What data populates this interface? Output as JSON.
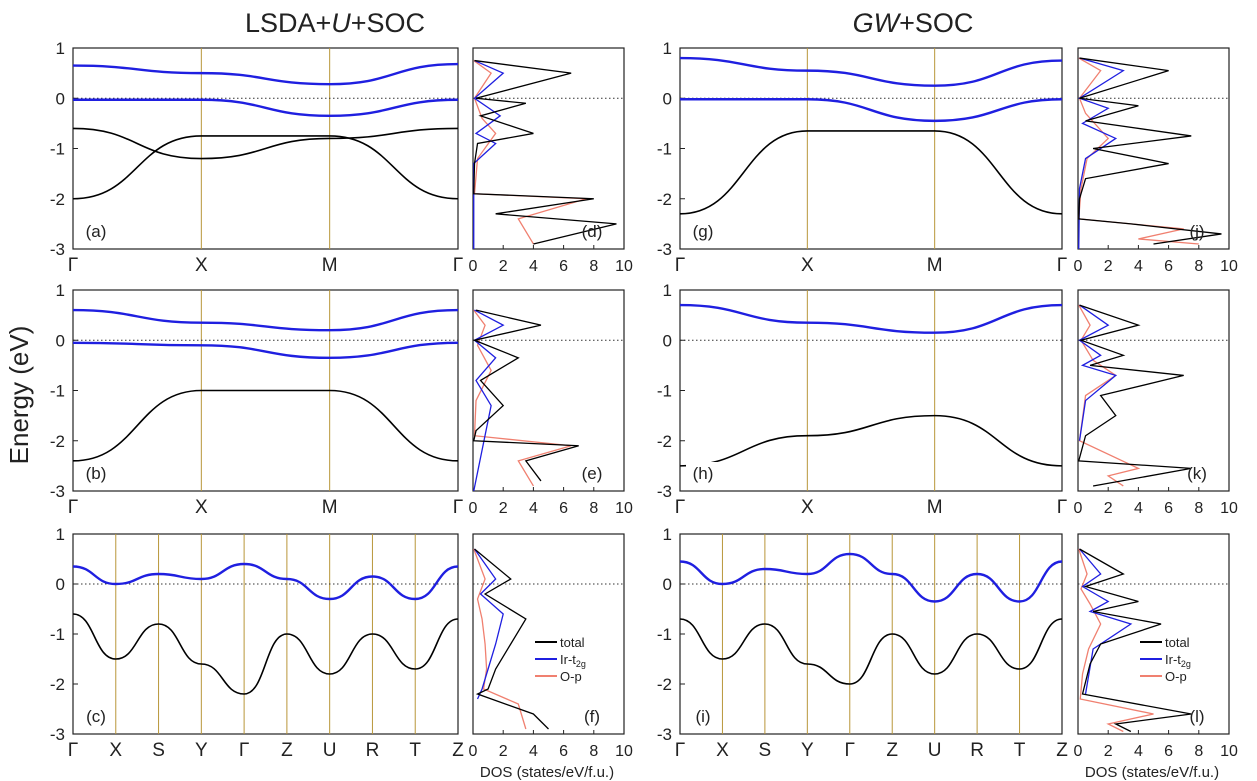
{
  "figure": {
    "col_titles": [
      "LSDA+U+SOC",
      "GW+SOC"
    ],
    "ylabel": "Energy (eV)",
    "dos_xlabel": "DOS (states/eV/f.u.)",
    "energy_ticks": [
      "1",
      "0",
      "-1",
      "-2",
      "-3"
    ],
    "dos_ticks": [
      "0",
      "2",
      "4",
      "6",
      "8",
      "10"
    ],
    "kpath_short": [
      "Γ",
      "X",
      "M",
      "Γ"
    ],
    "kpath_long": [
      "Γ",
      "X",
      "S",
      "Y",
      "Γ",
      "Z",
      "U",
      "R",
      "T",
      "Z"
    ],
    "legend": [
      "total",
      "Ir-t2g",
      "O-p"
    ],
    "colors": {
      "occupied": "#000000",
      "ir_t2g": "#1f1fe0",
      "o_p": "#f08070",
      "hsym_line": "#b8963a",
      "fermi_line": "#333333"
    }
  },
  "chart_data": [
    {
      "panel": "a",
      "type": "line",
      "method": "LSDA+U+SOC",
      "x_ticks": [
        "Γ",
        "X",
        "M",
        "Γ"
      ],
      "ylim": [
        -3,
        1
      ],
      "ylabel": "Energy (eV)",
      "series": [
        {
          "role": "Ir-t2g (upper)",
          "x": [
            0,
            1,
            2,
            3
          ],
          "y": [
            0.65,
            0.5,
            0.28,
            0.68
          ]
        },
        {
          "role": "Ir-t2g (lower)",
          "x": [
            0,
            1,
            2,
            3
          ],
          "y": [
            -0.03,
            -0.03,
            -0.35,
            -0.03
          ]
        },
        {
          "role": "occupied band",
          "x": [
            0,
            1,
            2,
            3
          ],
          "y": [
            -0.6,
            -1.2,
            -0.8,
            -0.6
          ]
        },
        {
          "role": "occupied band",
          "x": [
            0,
            1,
            2,
            3
          ],
          "y": [
            -2.0,
            -0.75,
            -0.75,
            -2.0
          ]
        }
      ]
    },
    {
      "panel": "b",
      "type": "line",
      "method": "LSDA+U+SOC",
      "x_ticks": [
        "Γ",
        "X",
        "M",
        "Γ"
      ],
      "ylim": [
        -3,
        1
      ],
      "series": [
        {
          "role": "Ir-t2g (upper)",
          "x": [
            0,
            1,
            2,
            3
          ],
          "y": [
            0.6,
            0.35,
            0.2,
            0.6
          ]
        },
        {
          "role": "Ir-t2g (lower)",
          "x": [
            0,
            1,
            2,
            3
          ],
          "y": [
            -0.05,
            -0.1,
            -0.35,
            -0.05
          ]
        },
        {
          "role": "occupied band",
          "x": [
            0,
            1,
            2,
            3
          ],
          "y": [
            -2.4,
            -1.0,
            -1.0,
            -2.4
          ]
        }
      ]
    },
    {
      "panel": "c",
      "type": "line",
      "method": "LSDA+U+SOC",
      "x_ticks": [
        "Γ",
        "X",
        "S",
        "Y",
        "Γ",
        "Z",
        "U",
        "R",
        "T",
        "Z"
      ],
      "ylim": [
        -3,
        1
      ],
      "series": [
        {
          "role": "Ir-t2g",
          "x": [
            0,
            1,
            2,
            3,
            4,
            5,
            6,
            7,
            8,
            9
          ],
          "y": [
            0.35,
            0.0,
            0.2,
            0.1,
            0.4,
            0.1,
            -0.3,
            0.15,
            -0.3,
            0.35
          ]
        },
        {
          "role": "occupied band",
          "x": [
            0,
            1,
            2,
            3,
            4,
            5,
            6,
            7,
            8,
            9
          ],
          "y": [
            -0.6,
            -1.5,
            -0.8,
            -1.6,
            -2.2,
            -1.0,
            -1.8,
            -1.0,
            -1.7,
            -0.7
          ]
        }
      ]
    },
    {
      "panel": "g",
      "type": "line",
      "method": "GW+SOC",
      "x_ticks": [
        "Γ",
        "X",
        "M",
        "Γ"
      ],
      "ylim": [
        -3,
        1
      ],
      "series": [
        {
          "role": "Ir-t2g (upper)",
          "x": [
            0,
            1,
            2,
            3
          ],
          "y": [
            0.8,
            0.55,
            0.25,
            0.75
          ]
        },
        {
          "role": "Ir-t2g (lower)",
          "x": [
            0,
            1,
            2,
            3
          ],
          "y": [
            -0.02,
            -0.02,
            -0.45,
            -0.02
          ]
        },
        {
          "role": "occupied band",
          "x": [
            0,
            1,
            2,
            3
          ],
          "y": [
            -2.3,
            -0.65,
            -0.65,
            -2.3
          ]
        }
      ]
    },
    {
      "panel": "h",
      "type": "line",
      "method": "GW+SOC",
      "x_ticks": [
        "Γ",
        "X",
        "M",
        "Γ"
      ],
      "ylim": [
        -3,
        1
      ],
      "series": [
        {
          "role": "Ir-t2g (upper)",
          "x": [
            0,
            1,
            2,
            3
          ],
          "y": [
            0.7,
            0.35,
            0.15,
            0.7
          ]
        },
        {
          "role": "occupied band",
          "x": [
            0,
            1,
            2,
            3
          ],
          "y": [
            -2.5,
            -1.9,
            -1.5,
            -2.5
          ]
        }
      ]
    },
    {
      "panel": "i",
      "type": "line",
      "method": "GW+SOC",
      "x_ticks": [
        "Γ",
        "X",
        "S",
        "Y",
        "Γ",
        "Z",
        "U",
        "R",
        "T",
        "Z"
      ],
      "ylim": [
        -3,
        1
      ],
      "series": [
        {
          "role": "Ir-t2g",
          "x": [
            0,
            1,
            2,
            3,
            4,
            5,
            6,
            7,
            8,
            9
          ],
          "y": [
            0.45,
            0.0,
            0.3,
            0.2,
            0.6,
            0.2,
            -0.35,
            0.2,
            -0.35,
            0.45
          ]
        },
        {
          "role": "occupied band",
          "x": [
            0,
            1,
            2,
            3,
            4,
            5,
            6,
            7,
            8,
            9
          ],
          "y": [
            -0.7,
            -1.5,
            -0.8,
            -1.6,
            -2.0,
            -1.0,
            -1.8,
            -1.0,
            -1.7,
            -0.7
          ]
        }
      ]
    },
    {
      "panel": "d",
      "type": "line",
      "xlim": [
        0,
        10
      ],
      "ylim": [
        -3,
        1
      ],
      "series": [
        {
          "name": "total",
          "x": [
            0.1,
            6.5,
            0.2,
            3.5,
            0.5,
            4.0,
            0.3,
            0.1,
            0.05,
            8.0,
            1.5,
            9.5,
            4.0
          ],
          "y": [
            0.75,
            0.5,
            0.0,
            -0.1,
            -0.35,
            -0.7,
            -0.9,
            -1.3,
            -1.9,
            -2.0,
            -2.3,
            -2.5,
            -2.9
          ]
        },
        {
          "name": "Ir-t2g",
          "x": [
            0.1,
            2.0,
            0.1,
            1.8,
            0.2,
            1.5,
            0.05,
            0.05
          ],
          "y": [
            0.75,
            0.5,
            0.0,
            -0.35,
            -0.7,
            -0.9,
            -1.3,
            -3.0
          ]
        },
        {
          "name": "O-p",
          "x": [
            0.05,
            1.2,
            0.1,
            0.6,
            1.5,
            0.3,
            0.1,
            7.5,
            3.0,
            4.0
          ],
          "y": [
            0.75,
            0.5,
            0.0,
            -0.4,
            -0.7,
            -1.2,
            -1.9,
            -2.0,
            -2.4,
            -2.9
          ]
        }
      ]
    },
    {
      "panel": "e",
      "type": "line",
      "xlim": [
        0,
        10
      ],
      "ylim": [
        -3,
        1
      ],
      "series": [
        {
          "name": "total",
          "x": [
            0.2,
            4.5,
            0.1,
            3.0,
            0.5,
            2.0,
            0.2,
            0.05,
            7.0,
            3.5,
            4.5
          ],
          "y": [
            0.6,
            0.3,
            0.0,
            -0.35,
            -0.8,
            -1.3,
            -1.8,
            -2.0,
            -2.1,
            -2.4,
            -2.8
          ]
        },
        {
          "name": "Ir-t2g",
          "x": [
            0.1,
            2.0,
            0.1,
            1.5,
            0.2,
            1.2,
            0.05
          ],
          "y": [
            0.6,
            0.3,
            0.0,
            -0.35,
            -0.8,
            -1.3,
            -3.0
          ]
        },
        {
          "name": "O-p",
          "x": [
            0.05,
            0.8,
            0.3,
            1.2,
            0.2,
            0.1,
            6.5,
            3.0,
            4.0
          ],
          "y": [
            0.6,
            0.3,
            -0.1,
            -0.6,
            -1.2,
            -1.9,
            -2.1,
            -2.4,
            -2.9
          ]
        }
      ]
    },
    {
      "panel": "f",
      "type": "line",
      "xlim": [
        0,
        10
      ],
      "ylim": [
        -3,
        1
      ],
      "series": [
        {
          "name": "total",
          "x": [
            0.1,
            2.5,
            0.8,
            3.5,
            2.5,
            1.5,
            1.0,
            0.3,
            4.0,
            5.0
          ],
          "y": [
            0.7,
            0.1,
            -0.2,
            -0.7,
            -1.2,
            -1.7,
            -2.1,
            -2.2,
            -2.6,
            -2.9
          ]
        },
        {
          "name": "Ir-t2g",
          "x": [
            0.1,
            1.5,
            0.5,
            2.0,
            1.5,
            1.0,
            0.6,
            0.3
          ],
          "y": [
            0.7,
            0.1,
            -0.2,
            -0.6,
            -1.2,
            -1.7,
            -2.1,
            -2.3
          ]
        },
        {
          "name": "O-p",
          "x": [
            0.05,
            0.8,
            0.3,
            0.6,
            0.8,
            0.9,
            0.7,
            3.0,
            3.5
          ],
          "y": [
            0.7,
            0.1,
            -0.3,
            -0.7,
            -1.2,
            -1.7,
            -2.1,
            -2.4,
            -2.9
          ]
        }
      ]
    },
    {
      "panel": "j",
      "type": "line",
      "xlim": [
        0,
        10
      ],
      "ylim": [
        -3,
        1
      ],
      "series": [
        {
          "name": "total",
          "x": [
            0.1,
            6.0,
            0.1,
            4.0,
            0.5,
            7.5,
            1.0,
            6.0,
            0.5,
            0.1,
            0.05,
            3.5,
            9.5,
            5.0
          ],
          "y": [
            0.8,
            0.55,
            0.0,
            -0.15,
            -0.45,
            -0.75,
            -1.0,
            -1.3,
            -1.6,
            -2.0,
            -2.4,
            -2.5,
            -2.7,
            -2.9
          ]
        },
        {
          "name": "Ir-t2g",
          "x": [
            0.1,
            3.0,
            0.1,
            2.0,
            0.3,
            2.5,
            0.5,
            0.1,
            0.05
          ],
          "y": [
            0.8,
            0.55,
            0.0,
            -0.2,
            -0.5,
            -0.8,
            -1.2,
            -1.8,
            -3.0
          ]
        },
        {
          "name": "O-p",
          "x": [
            0.05,
            1.5,
            0.1,
            0.5,
            2.0,
            0.6,
            0.2,
            0.05,
            7.0,
            4.0,
            8.0
          ],
          "y": [
            0.8,
            0.55,
            0.0,
            -0.3,
            -0.8,
            -1.2,
            -1.8,
            -2.4,
            -2.6,
            -2.8,
            -2.9
          ]
        }
      ]
    },
    {
      "panel": "k",
      "type": "line",
      "xlim": [
        0,
        10
      ],
      "ylim": [
        -3,
        1
      ],
      "series": [
        {
          "name": "total",
          "x": [
            0.1,
            4.0,
            0.2,
            3.0,
            0.8,
            7.0,
            1.5,
            2.5,
            0.5,
            0.05,
            7.5,
            1.0
          ],
          "y": [
            0.7,
            0.3,
            0.0,
            -0.3,
            -0.5,
            -0.7,
            -1.1,
            -1.5,
            -1.9,
            -2.4,
            -2.55,
            -2.9
          ]
        },
        {
          "name": "Ir-t2g",
          "x": [
            0.1,
            2.0,
            0.1,
            1.5,
            0.3,
            2.5,
            0.5,
            0.1
          ],
          "y": [
            0.7,
            0.3,
            0.0,
            -0.3,
            -0.5,
            -0.7,
            -1.2,
            -2.0
          ]
        },
        {
          "name": "O-p",
          "x": [
            0.05,
            0.8,
            0.2,
            1.0,
            2.5,
            0.5,
            0.1,
            4.0,
            2.0,
            3.0
          ],
          "y": [
            0.7,
            0.3,
            0.0,
            -0.4,
            -0.7,
            -1.1,
            -2.0,
            -2.55,
            -2.7,
            -2.9
          ]
        }
      ]
    },
    {
      "panel": "l",
      "type": "line",
      "xlim": [
        0,
        10
      ],
      "ylim": [
        -3,
        1
      ],
      "series": [
        {
          "name": "total",
          "x": [
            0.1,
            3.0,
            0.5,
            4.0,
            1.0,
            5.5,
            1.5,
            0.8,
            0.3,
            7.5,
            2.5,
            3.5
          ],
          "y": [
            0.7,
            0.2,
            -0.05,
            -0.35,
            -0.55,
            -0.8,
            -1.2,
            -1.6,
            -2.2,
            -2.6,
            -2.8,
            -2.95
          ]
        },
        {
          "name": "Ir-t2g",
          "x": [
            0.1,
            1.5,
            0.3,
            2.0,
            0.8,
            3.5,
            1.0,
            0.5
          ],
          "y": [
            0.7,
            0.2,
            -0.05,
            -0.35,
            -0.55,
            -0.8,
            -1.3,
            -2.2
          ]
        },
        {
          "name": "O-p",
          "x": [
            0.05,
            0.6,
            0.2,
            0.8,
            1.5,
            0.7,
            0.3,
            0.15,
            5.0,
            2.0,
            3.0
          ],
          "y": [
            0.7,
            0.2,
            -0.1,
            -0.4,
            -0.8,
            -1.3,
            -1.8,
            -2.3,
            -2.6,
            -2.8,
            -2.95
          ]
        }
      ]
    }
  ]
}
